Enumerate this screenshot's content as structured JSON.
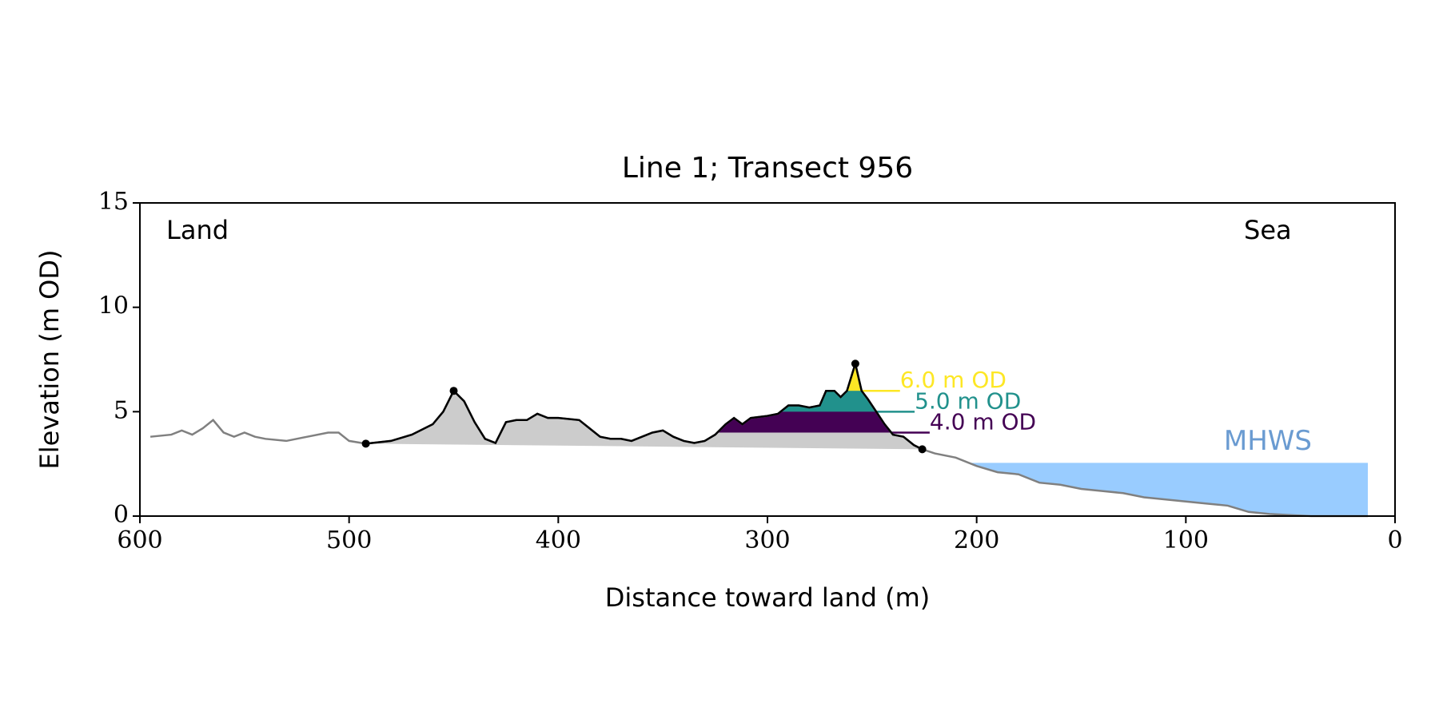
{
  "chart_data": {
    "type": "profile",
    "title": "Line 1; Transect 956",
    "xlabel": "Distance toward land (m)",
    "ylabel": "Elevation (m OD)",
    "annotations": [
      "Land",
      "Sea"
    ],
    "xlim": [
      600,
      0
    ],
    "ylim": [
      0,
      15
    ],
    "xticks": [
      600,
      500,
      400,
      300,
      200,
      100,
      0
    ],
    "yticks": [
      0,
      5,
      10,
      15
    ],
    "profile": {
      "color": "#808080",
      "dune_color": "#000000",
      "fill_color": "#cccccc",
      "x": [
        595,
        585,
        580,
        575,
        570,
        565,
        560,
        555,
        550,
        545,
        540,
        530,
        520,
        510,
        505,
        500,
        492,
        480,
        470,
        460,
        455,
        450,
        445,
        440,
        435,
        430,
        425,
        420,
        415,
        410,
        405,
        400,
        390,
        385,
        380,
        375,
        370,
        365,
        355,
        350,
        345,
        340,
        335,
        330,
        325,
        320,
        316,
        312,
        308,
        300,
        295,
        290,
        285,
        280,
        275,
        272,
        268,
        265,
        262,
        258,
        255,
        252,
        248,
        244,
        240,
        235,
        230,
        226,
        220,
        210,
        200,
        190,
        180,
        170,
        160,
        150,
        140,
        130,
        120,
        110,
        100,
        90,
        80,
        70,
        60,
        50,
        40,
        30,
        20,
        13
      ],
      "y": [
        3.8,
        3.9,
        4.1,
        3.9,
        4.2,
        4.6,
        4.0,
        3.8,
        4.0,
        3.8,
        3.7,
        3.6,
        3.8,
        4.0,
        4.0,
        3.6,
        3.47,
        3.6,
        3.9,
        4.4,
        5.0,
        6.0,
        5.5,
        4.5,
        3.7,
        3.5,
        4.5,
        4.6,
        4.6,
        4.9,
        4.7,
        4.7,
        4.6,
        4.2,
        3.8,
        3.7,
        3.7,
        3.6,
        4.0,
        4.1,
        3.8,
        3.6,
        3.5,
        3.6,
        3.9,
        4.4,
        4.7,
        4.4,
        4.7,
        4.8,
        4.9,
        5.3,
        5.3,
        5.2,
        5.3,
        6.0,
        6.0,
        5.7,
        6.0,
        7.3,
        6.0,
        5.6,
        5.0,
        4.4,
        3.9,
        3.8,
        3.4,
        3.2,
        3.0,
        2.8,
        2.4,
        2.1,
        2.0,
        1.6,
        1.5,
        1.3,
        1.2,
        1.1,
        0.9,
        0.8,
        0.7,
        0.6,
        0.5,
        0.2,
        0.1,
        0.05,
        0,
        0,
        0,
        0
      ]
    },
    "markers": {
      "x": [
        492,
        450,
        258,
        226
      ],
      "y": [
        3.47,
        6.0,
        7.3,
        3.2
      ],
      "color": "#000000"
    },
    "levels": [
      {
        "value": 4,
        "label": "4.0 m OD",
        "color": "#440154"
      },
      {
        "value": 5,
        "label": "5.0 m OD",
        "color": "#21918c"
      },
      {
        "value": 6,
        "label": "6.0 m OD",
        "color": "#fde725"
      }
    ],
    "mhws": {
      "value": 2.55,
      "label": "MHWS",
      "color": "#99ccff",
      "label_color": "#6a9bd1"
    }
  }
}
